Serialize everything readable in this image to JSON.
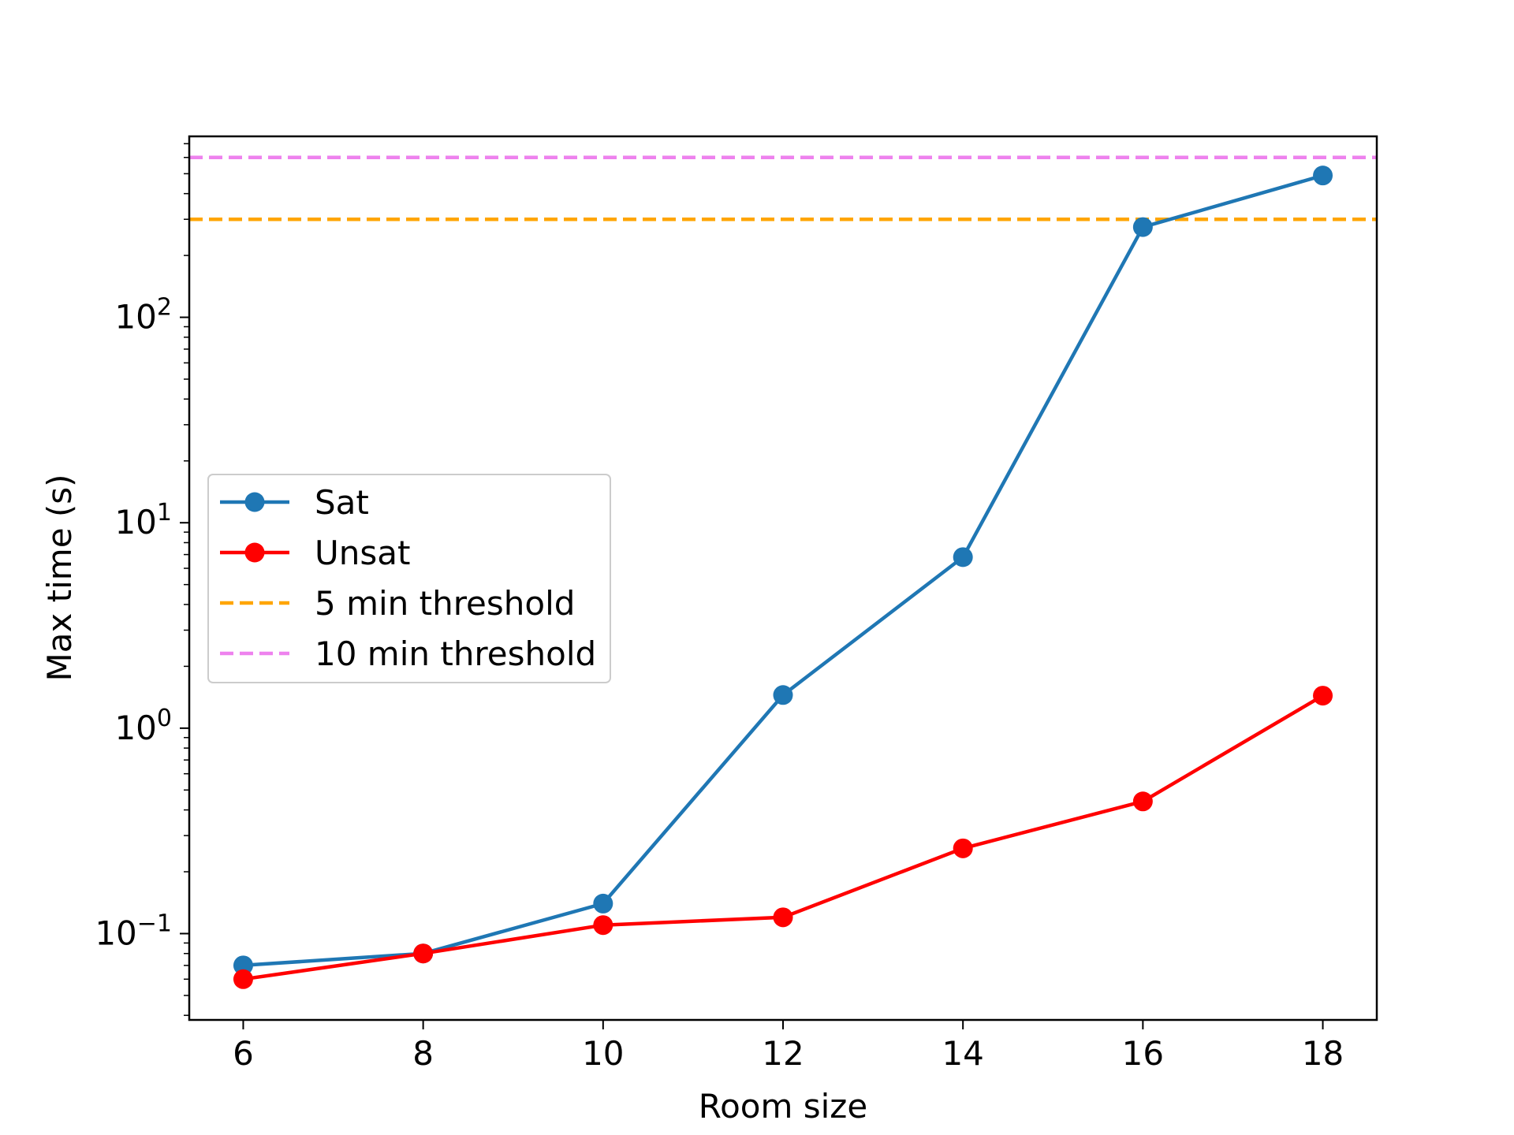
{
  "chart_data": {
    "type": "line",
    "title": "",
    "xlabel": "Room size",
    "ylabel": "Max time (s)",
    "yscale": "log",
    "xlim": [
      5.4,
      18.6
    ],
    "ylim": [
      0.038,
      760
    ],
    "xticks": [
      {
        "value": 6,
        "label": "6"
      },
      {
        "value": 8,
        "label": "8"
      },
      {
        "value": 10,
        "label": "10"
      },
      {
        "value": 12,
        "label": "12"
      },
      {
        "value": 14,
        "label": "14"
      },
      {
        "value": 16,
        "label": "16"
      },
      {
        "value": 18,
        "label": "18"
      }
    ],
    "yticks": [
      {
        "value": 0.1,
        "base": "10",
        "exp": "−1"
      },
      {
        "value": 1,
        "base": "10",
        "exp": "0"
      },
      {
        "value": 10,
        "base": "10",
        "exp": "1"
      },
      {
        "value": 100,
        "base": "10",
        "exp": "2"
      }
    ],
    "x": [
      6,
      8,
      10,
      12,
      14,
      16,
      18
    ],
    "series": [
      {
        "name": "Sat",
        "color": "#1f77b4",
        "marker": "circle",
        "values": [
          0.07,
          0.08,
          0.14,
          1.45,
          6.8,
          275,
          490
        ]
      },
      {
        "name": "Unsat",
        "color": "#ff0000",
        "marker": "circle",
        "values": [
          0.06,
          0.08,
          0.11,
          0.12,
          0.26,
          0.44,
          1.44
        ]
      }
    ],
    "hlines": [
      {
        "name": "5 min threshold",
        "value": 300,
        "color": "#ffa500",
        "style": "dashed"
      },
      {
        "name": "10 min threshold",
        "value": 600,
        "color": "#ee82ee",
        "style": "dashed"
      }
    ],
    "legend": {
      "position": "center-left"
    },
    "grid": false
  }
}
